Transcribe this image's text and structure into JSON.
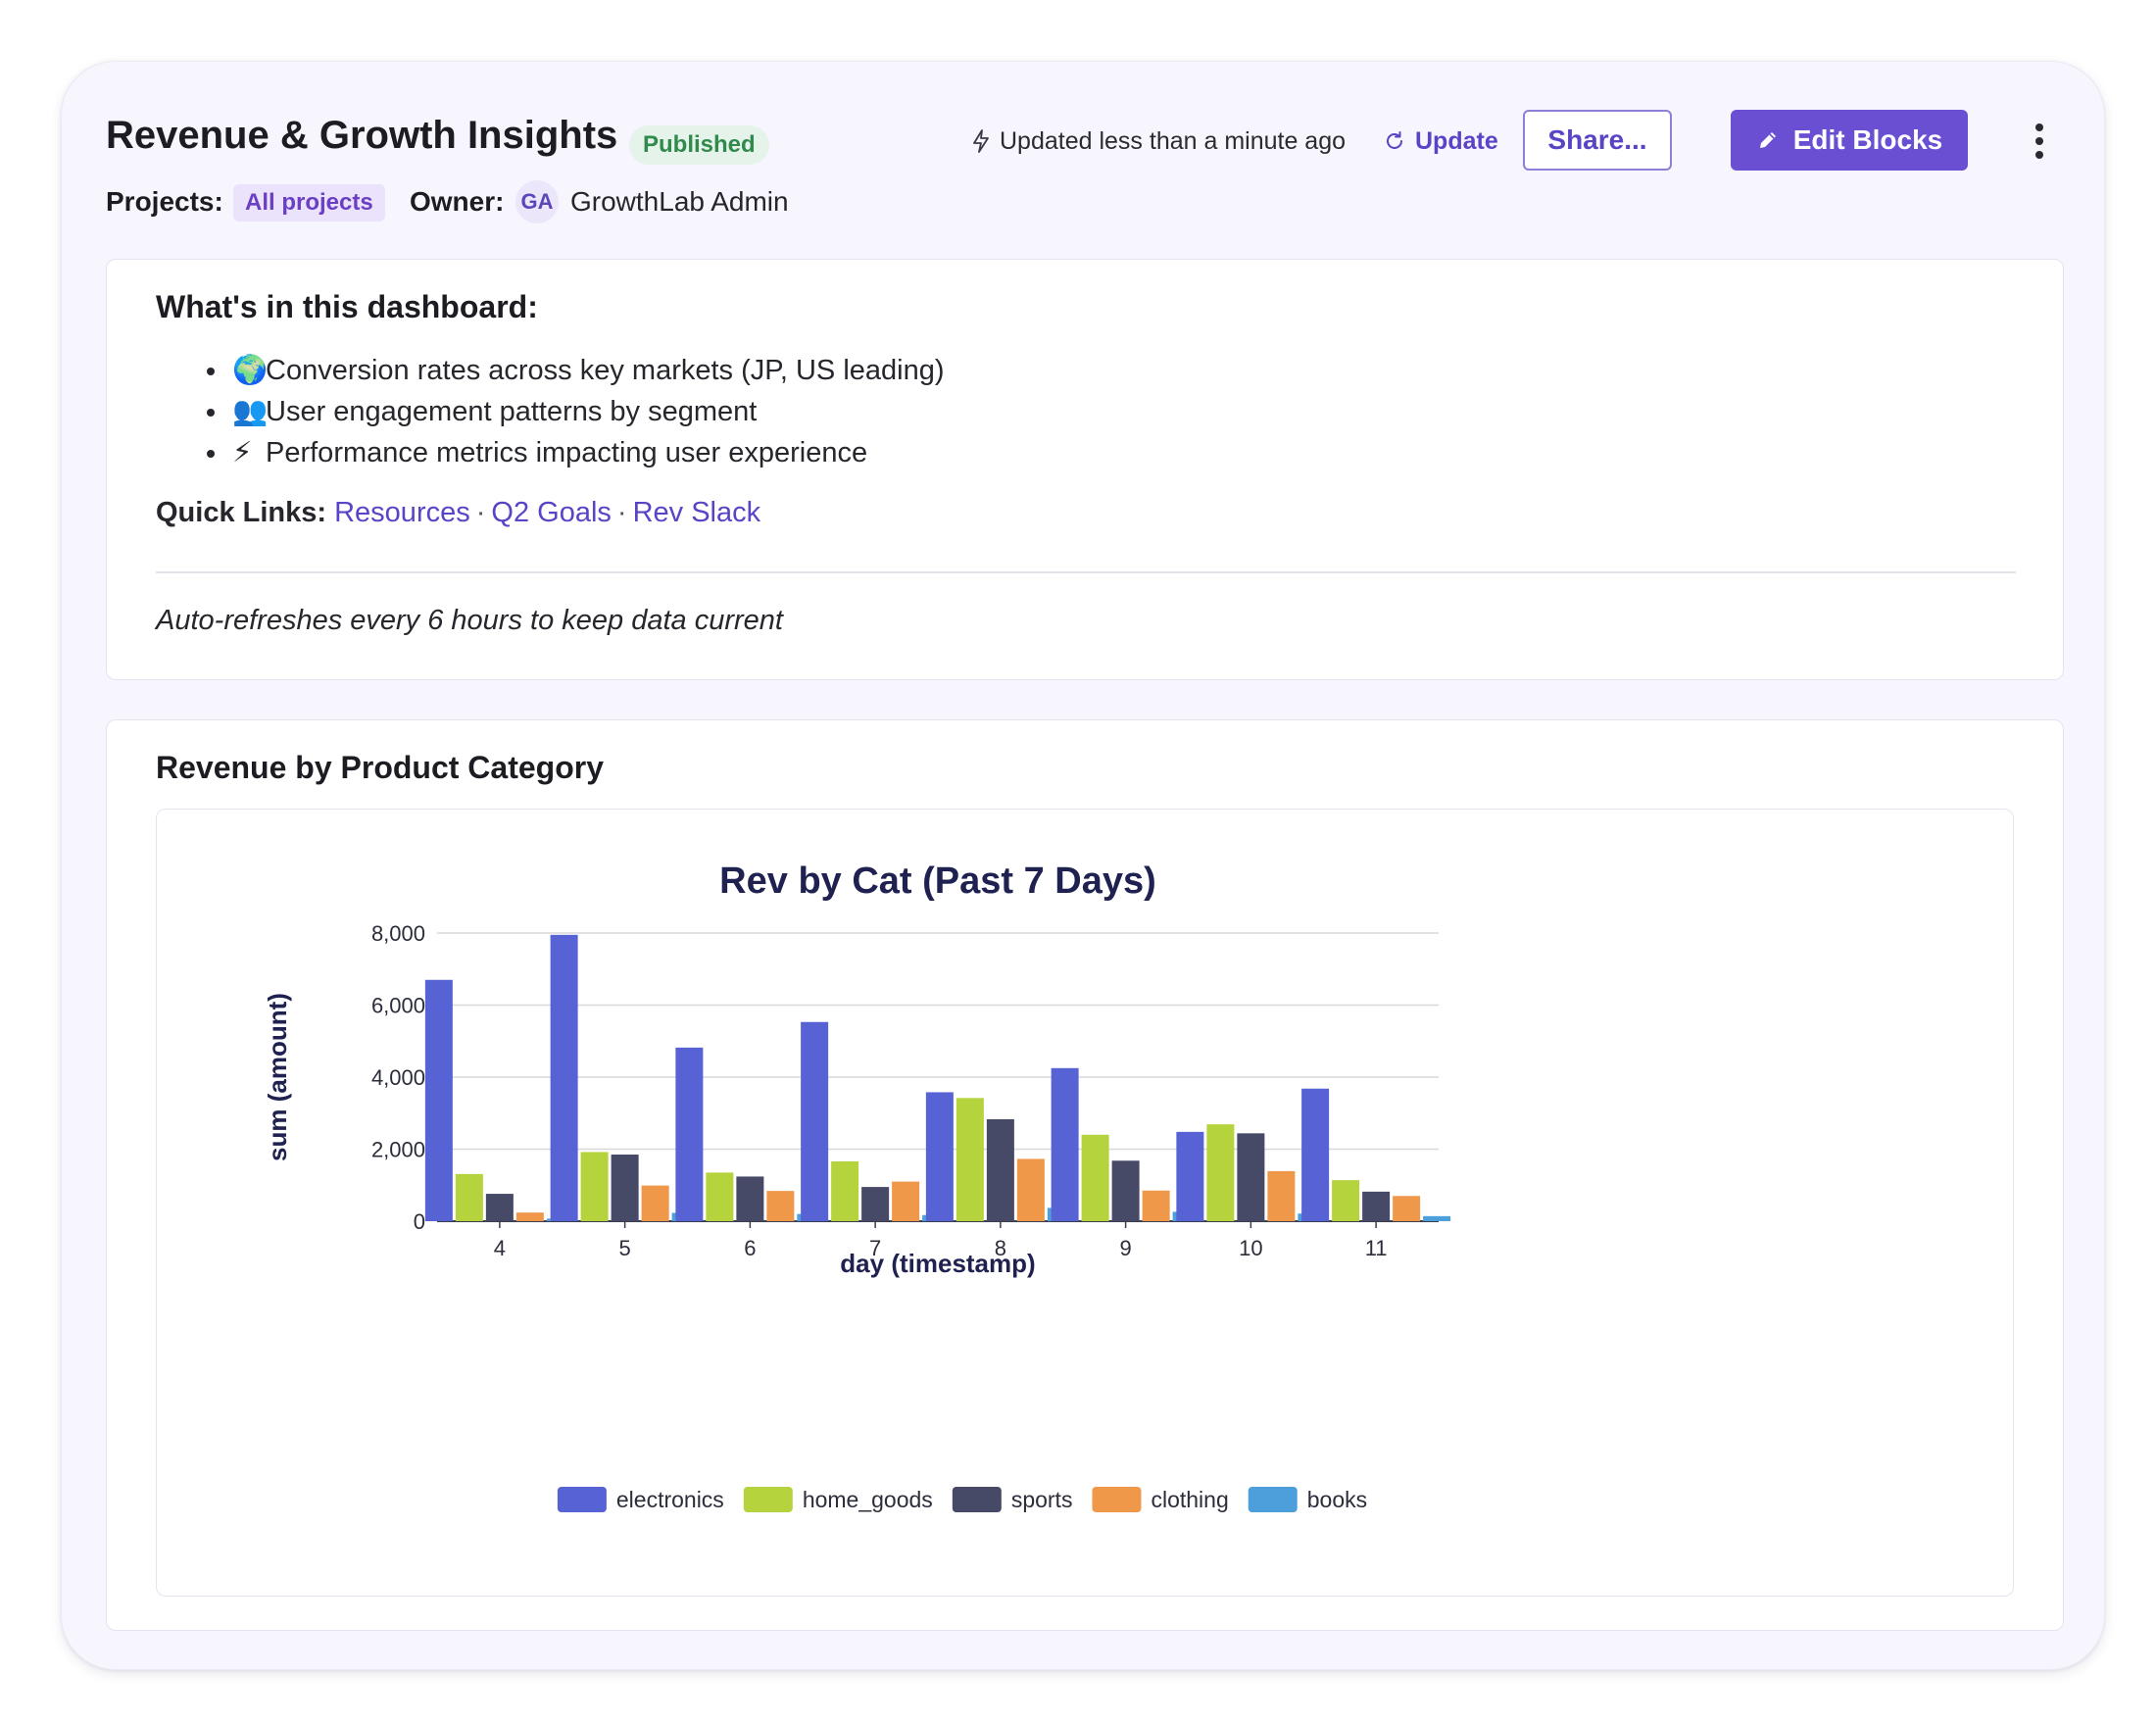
{
  "header": {
    "title": "Revenue & Growth Insights",
    "status_badge": "Published",
    "projects_label": "Projects:",
    "projects_value": "All projects",
    "owner_label": "Owner:",
    "owner_initials": "GA",
    "owner_name": "GrowthLab Admin",
    "updated_text": "Updated less than a minute ago",
    "update_label": "Update",
    "share_label": "Share...",
    "edit_label": "Edit Blocks"
  },
  "info": {
    "heading": "What's in this dashboard:",
    "bullets": [
      {
        "emoji": "🌍",
        "text": "Conversion rates across key markets (JP, US leading)"
      },
      {
        "emoji": "👥",
        "text": "User engagement patterns by segment"
      },
      {
        "emoji": "⚡",
        "text": "Performance metrics impacting user experience"
      }
    ],
    "quick_links_label": "Quick Links:",
    "links": [
      "Resources",
      "Q2 Goals",
      "Rev Slack"
    ],
    "link_separator": "·",
    "footer_note": "Auto-refreshes every 6 hours to keep data current"
  },
  "chart_block": {
    "heading": "Revenue by Product Category"
  },
  "colors": {
    "accent": "#6a4fd3",
    "link": "#5a43c6",
    "published_bg": "#e6f3ea",
    "published_text": "#2f8a4c"
  },
  "chart_data": {
    "type": "bar",
    "title": "Rev by Cat (Past 7 Days)",
    "xlabel": "day (timestamp)",
    "ylabel": "sum (amount)",
    "categories": [
      "4",
      "5",
      "6",
      "7",
      "8",
      "9",
      "10",
      "11"
    ],
    "ylim": [
      0,
      8000
    ],
    "yticks": [
      "0",
      "2,000",
      "4,000",
      "6,000",
      "8,000"
    ],
    "grid": true,
    "legend_position": "bottom",
    "series": [
      {
        "name": "electronics",
        "color": "#5762d5",
        "values": [
          6700,
          7950,
          4820,
          5530,
          3580,
          4250,
          2480,
          3680
        ]
      },
      {
        "name": "home_goods",
        "color": "#b5d33d",
        "values": [
          1310,
          1920,
          1350,
          1660,
          3420,
          2400,
          2690,
          1140
        ]
      },
      {
        "name": "sports",
        "color": "#474a67",
        "values": [
          760,
          1850,
          1240,
          950,
          2830,
          1680,
          2440,
          820
        ]
      },
      {
        "name": "clothing",
        "color": "#f0984a",
        "values": [
          240,
          990,
          840,
          1100,
          1730,
          850,
          1390,
          700
        ]
      },
      {
        "name": "books",
        "color": "#4d9fdc",
        "values": [
          70,
          230,
          200,
          170,
          370,
          260,
          210,
          140
        ]
      }
    ]
  }
}
